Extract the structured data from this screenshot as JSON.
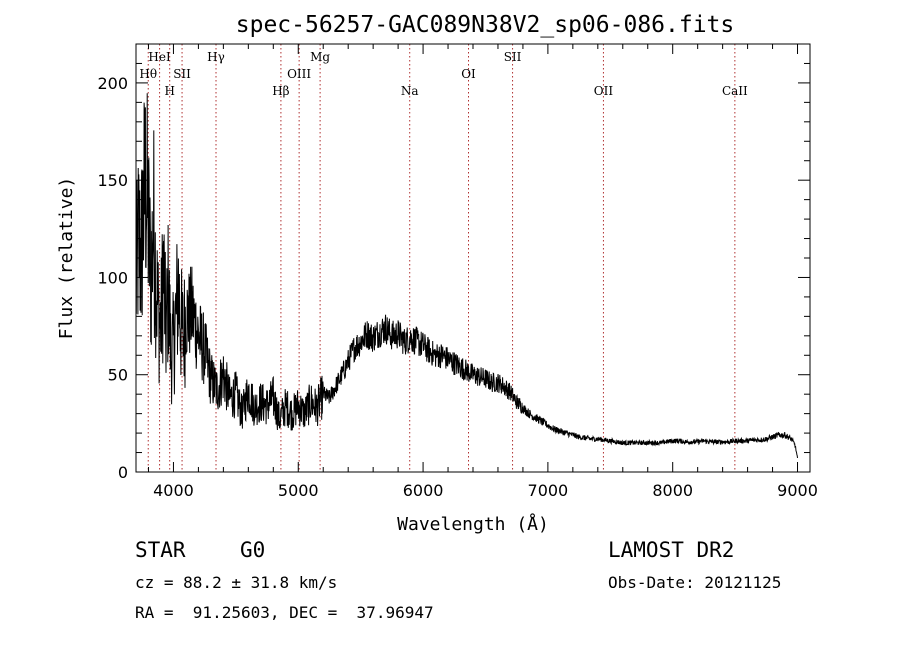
{
  "chart_data": {
    "type": "line",
    "title": "spec-56257-GAC089N38V2_sp06-086.fits",
    "xlabel": "Wavelength (Å)",
    "ylabel": "Flux (relative)",
    "xlim": [
      3700,
      9100
    ],
    "ylim": [
      0,
      220
    ],
    "xticks": [
      4000,
      5000,
      6000,
      7000,
      8000,
      9000
    ],
    "yticks": [
      0,
      50,
      100,
      150,
      200
    ],
    "grid": false,
    "colors": {
      "spectrum": "#000000",
      "lines": "#b03030",
      "axes": "#000000"
    },
    "spectral_lines": [
      {
        "label": "Hθ",
        "wavelength": 3798,
        "row": 2
      },
      {
        "label": "HeI",
        "wavelength": 3889,
        "row": 1
      },
      {
        "label": "H",
        "wavelength": 3970,
        "row": 3
      },
      {
        "label": "SII",
        "wavelength": 4069,
        "row": 2
      },
      {
        "label": "Hγ",
        "wavelength": 4341,
        "row": 1
      },
      {
        "label": "Hβ",
        "wavelength": 4861,
        "row": 3
      },
      {
        "label": "OIII",
        "wavelength": 5007,
        "row": 2
      },
      {
        "label": "Mg",
        "wavelength": 5175,
        "row": 1
      },
      {
        "label": "Na",
        "wavelength": 5893,
        "row": 3
      },
      {
        "label": "OI",
        "wavelength": 6364,
        "row": 2
      },
      {
        "label": "SII",
        "wavelength": 6717,
        "row": 1
      },
      {
        "label": "OII",
        "wavelength": 7445,
        "row": 3
      },
      {
        "label": "CaII",
        "wavelength": 8498,
        "row": 3
      }
    ],
    "series": [
      {
        "x": [
          3700,
          3720,
          3740,
          3760,
          3780,
          3800,
          3820,
          3840,
          3860,
          3880,
          3900,
          3920,
          3940,
          3960,
          3980,
          4000,
          4020,
          4040,
          4060,
          4080,
          4100,
          4150,
          4200,
          4250,
          4300,
          4350,
          4400,
          4450,
          4500,
          4550,
          4600,
          4650,
          4700,
          4750,
          4800,
          4850,
          4900,
          4950,
          5000,
          5050,
          5100,
          5150,
          5200,
          5250,
          5300,
          5350,
          5400,
          5450,
          5500,
          5550,
          5600,
          5650,
          5700,
          5750,
          5800,
          5850,
          5900,
          5950,
          6000,
          6050,
          6100,
          6150,
          6200,
          6250,
          6300,
          6350,
          6400,
          6450,
          6500,
          6550,
          6600,
          6650,
          6700,
          6750,
          6800,
          6850,
          6900,
          6950,
          7000,
          7050,
          7100,
          7150,
          7200,
          7250,
          7300,
          7350,
          7400,
          7450,
          7500,
          7550,
          7600,
          7650,
          7700,
          7750,
          7800,
          7850,
          7900,
          7950,
          8000,
          8050,
          8100,
          8150,
          8200,
          8250,
          8300,
          8350,
          8400,
          8450,
          8500,
          8550,
          8600,
          8650,
          8700,
          8750,
          8800,
          8850,
          8900,
          8950,
          8980,
          9000
        ],
        "y": [
          95,
          120,
          110,
          135,
          150,
          125,
          98,
          130,
          100,
          80,
          75,
          105,
          70,
          95,
          60,
          65,
          80,
          95,
          75,
          70,
          80,
          82,
          70,
          62,
          48,
          42,
          50,
          38,
          40,
          30,
          42,
          33,
          36,
          34,
          38,
          27,
          34,
          30,
          34,
          30,
          36,
          33,
          40,
          38,
          44,
          50,
          57,
          64,
          67,
          71,
          69,
          72,
          74,
          70,
          71,
          67,
          69,
          67,
          65,
          62,
          60,
          60,
          58,
          56,
          54,
          52,
          50,
          49,
          48,
          46,
          46,
          44,
          41,
          36,
          33,
          30,
          28,
          26,
          24,
          22,
          21,
          20,
          19,
          18,
          17.5,
          17,
          17,
          16.5,
          16,
          15.5,
          15,
          15,
          15,
          15,
          15,
          15,
          15,
          15.5,
          16,
          16,
          15.5,
          15.5,
          15.5,
          16,
          15.5,
          15.5,
          15.5,
          15.5,
          16,
          16,
          16,
          16.5,
          16.5,
          17,
          18,
          19,
          19,
          17,
          14,
          7
        ]
      }
    ]
  },
  "info": {
    "object_class": "STAR",
    "subclass": "G0",
    "cz": "cz = 88.2 ± 31.8 km/s",
    "radec": "RA =  91.25603, DEC =  37.96947",
    "survey": "LAMOST DR2",
    "obs_date": "Obs-Date: 20121125"
  }
}
